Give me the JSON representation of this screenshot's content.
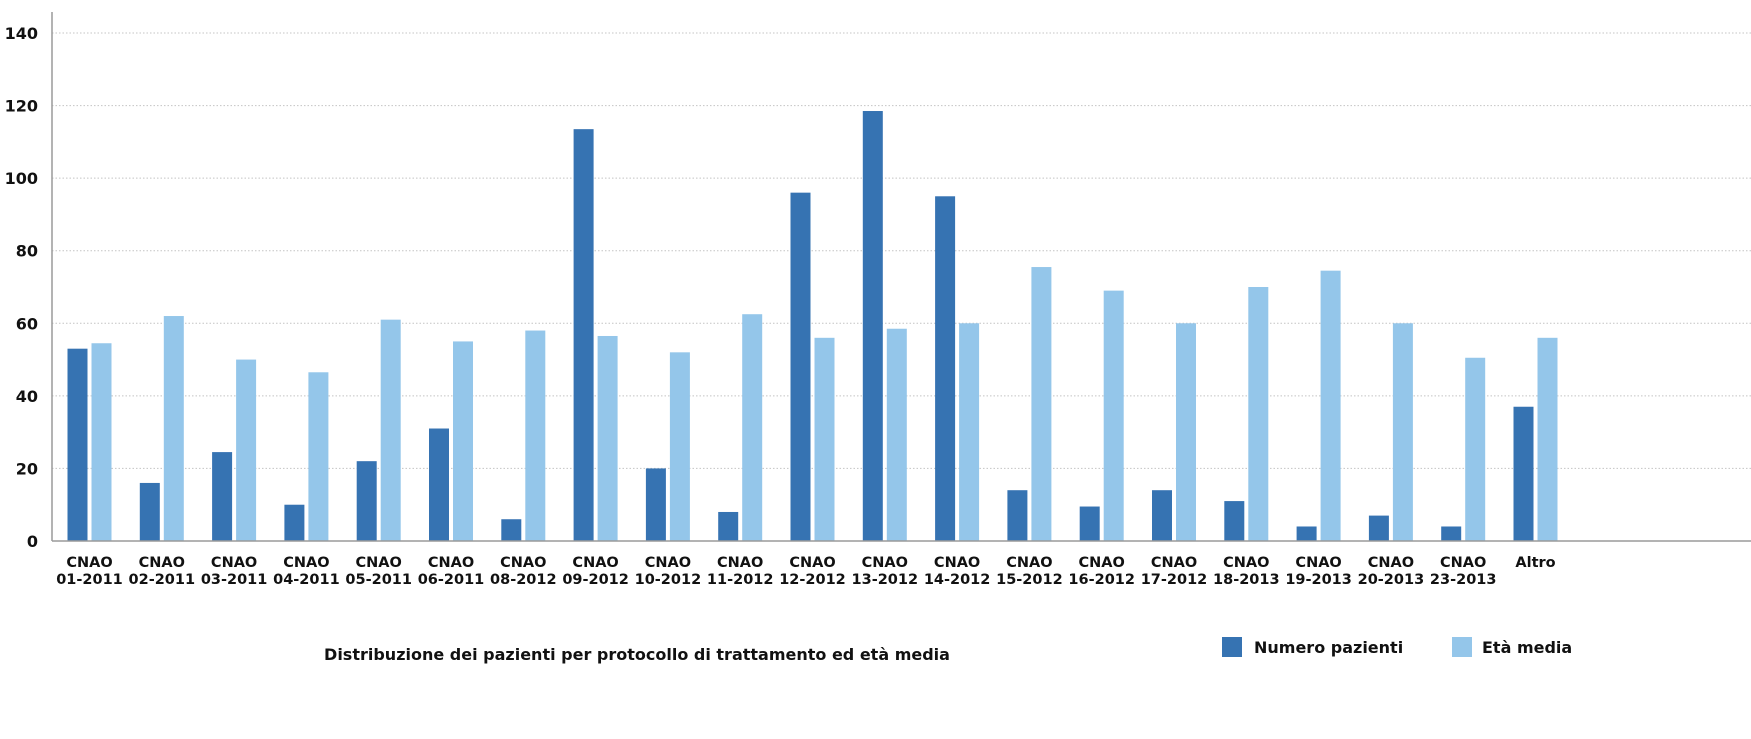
{
  "chart_data": {
    "type": "bar",
    "title": "Distribuzione dei pazienti per protocollo di trattamento ed età media",
    "xlabel": "",
    "ylabel": "",
    "ylim": [
      0,
      145
    ],
    "yticks": [
      0,
      20,
      40,
      60,
      80,
      100,
      120,
      140
    ],
    "grid": true,
    "legend_position": "bottom-right",
    "categories": [
      [
        "CNAO",
        "01-2011"
      ],
      [
        "CNAO",
        "02-2011"
      ],
      [
        "CNAO",
        "03-2011"
      ],
      [
        "CNAO",
        "04-2011"
      ],
      [
        "CNAO",
        "05-2011"
      ],
      [
        "CNAO",
        "06-2011"
      ],
      [
        "CNAO",
        "08-2012"
      ],
      [
        "CNAO",
        "09-2012"
      ],
      [
        "CNAO",
        "10-2012"
      ],
      [
        "CNAO",
        "11-2012"
      ],
      [
        "CNAO",
        "12-2012"
      ],
      [
        "CNAO",
        "13-2012"
      ],
      [
        "CNAO",
        "14-2012"
      ],
      [
        "CNAO",
        "15-2012"
      ],
      [
        "CNAO",
        "16-2012"
      ],
      [
        "CNAO",
        "17-2012"
      ],
      [
        "CNAO",
        "18-2013"
      ],
      [
        "CNAO",
        "19-2013"
      ],
      [
        "CNAO",
        "20-2013"
      ],
      [
        "CNAO",
        "23-2013"
      ],
      [
        "Altro"
      ]
    ],
    "series": [
      {
        "name": "Numero pazienti",
        "color": "#3673b2",
        "values": [
          53,
          16,
          24.5,
          10,
          22,
          31,
          6,
          113.5,
          20,
          8,
          96,
          118.5,
          95,
          14,
          9.5,
          14,
          11,
          4,
          7,
          4,
          37
        ]
      },
      {
        "name": "Età media",
        "color": "#94c6ea",
        "values": [
          54.5,
          62,
          50,
          46.5,
          61,
          55,
          58,
          56.5,
          52,
          62.5,
          56,
          58.5,
          60,
          75.5,
          69,
          60,
          70,
          74.5,
          60,
          50.5,
          56
        ]
      }
    ]
  }
}
